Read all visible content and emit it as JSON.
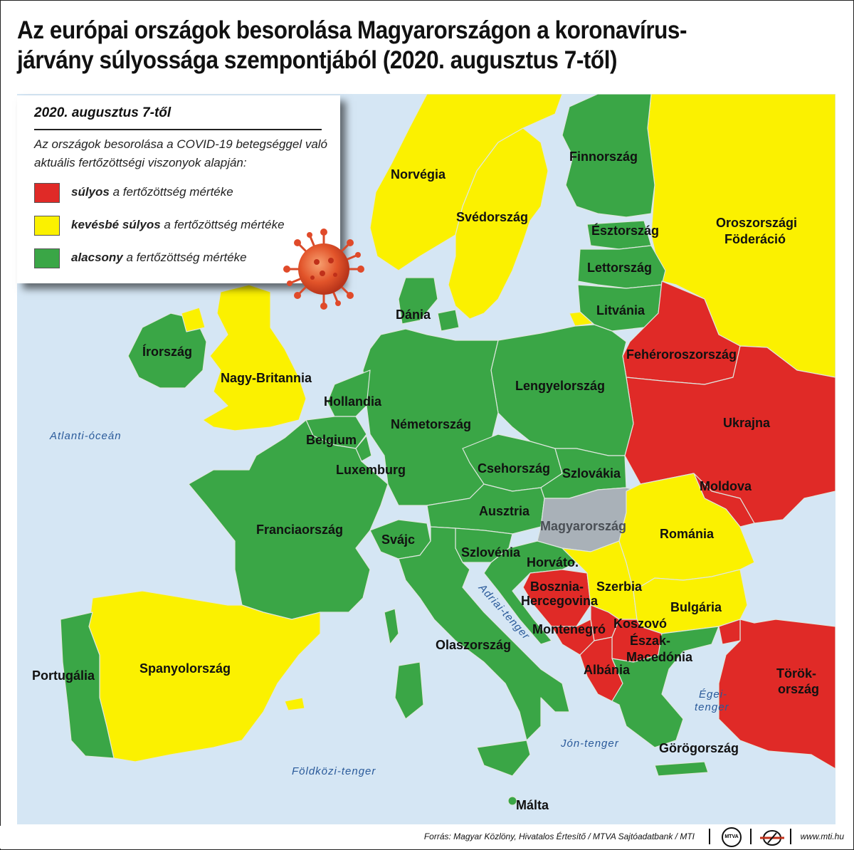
{
  "title": "Az európai országok besorolása Magyarországon a koronavírus-járvány súlyossága szempontjából (2020. augusztus 7-től)",
  "colors": {
    "red": "#e02a27",
    "yellow": "#fbf100",
    "green": "#3aa646",
    "grey": "#a9b1b8",
    "sea": "#d5e6f4",
    "border": "#c9d3c9"
  },
  "legend": {
    "date": "2020. augusztus 7-től",
    "description": "Az országok besorolása a COVID-19 betegséggel való aktuális fertőzöttségi viszonyok alapján:",
    "items": [
      {
        "bold": "súlyos",
        "rest": " a fertőzöttség mértéke",
        "color": "#e02a27"
      },
      {
        "bold": "kevésbé súlyos",
        "rest": " a fertőzöttség mértéke",
        "color": "#fbf100"
      },
      {
        "bold": "alacsony",
        "rest": " a fertőzöttség mértéke",
        "color": "#3aa646"
      }
    ],
    "virus_icon": "coronavirus-icon"
  },
  "countries": {
    "norvegia": "Norvégia",
    "svedorszag": "Svédország",
    "finnorszag": "Finnország",
    "esztorszag": "Észtország",
    "lettorszag": "Lettország",
    "litvania": "Litvánia",
    "orosz_1": "Oroszországi",
    "orosz_2": "Föderáció",
    "dania": "Dánia",
    "irorszag": "Írország",
    "nagybritannia": "Nagy-Britannia",
    "feherorosz": "Fehéroroszország",
    "lengyel": "Lengyelország",
    "hollandia": "Hollandia",
    "nemet": "Németország",
    "belgium": "Belgium",
    "luxemburg": "Luxemburg",
    "cseh": "Csehország",
    "szlovakia": "Szlovákia",
    "ukrajna": "Ukrajna",
    "moldova": "Moldova",
    "ausztria": "Ausztria",
    "magyar": "Magyarország",
    "francia": "Franciaország",
    "svajc": "Svájc",
    "romania": "Románia",
    "szlovenia": "Szlovénia",
    "horvat": "Horváto.",
    "bosznia_1": "Bosznia-",
    "bosznia_2": "Hercegovina",
    "szerbia": "Szerbia",
    "bulgaria": "Bulgária",
    "montenegro": "Montenegró",
    "koszovo": "Koszovó",
    "eszakmac_1": "Észak-",
    "eszakmac_2": "Macedónia",
    "olasz": "Olaszország",
    "albania": "Albánia",
    "torok_1": "Török-",
    "torok_2": "ország",
    "portugalia": "Portugália",
    "spanyol": "Spanyolország",
    "gorog": "Görögország",
    "malta": "Málta"
  },
  "seas": {
    "atlanti": "Atlanti-óceán",
    "adriai": "Adriai-tenger",
    "egei_1": "Égei-",
    "egei_2": "tenger",
    "jon": "Jón-tenger",
    "foldkozi": "Földközi-tenger"
  },
  "footer": {
    "source": "Forrás: Magyar Közlöny, Hivatalos Értesítő / MTVA Sajtóadatbank / MTI",
    "logo1": "MTVA",
    "website": "www.mti.hu"
  }
}
